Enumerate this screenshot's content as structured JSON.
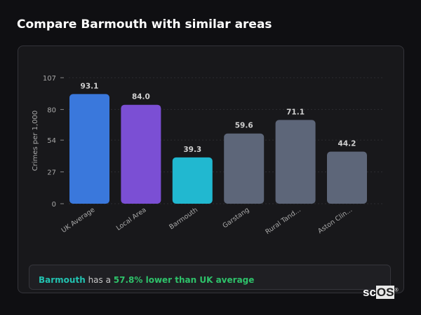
{
  "header": {
    "title": "Compare Barmouth with similar areas"
  },
  "chart_data": {
    "type": "bar",
    "title": "",
    "xlabel": "",
    "ylabel": "Crimes per 1,000",
    "ylim": [
      0,
      107
    ],
    "yticks": [
      0,
      27,
      54,
      80,
      107
    ],
    "grid": true,
    "categories": [
      "UK Average",
      "Local Area",
      "Barmouth",
      "Garstang",
      "Rural Tand...",
      "Aston Clin..."
    ],
    "values": [
      93.1,
      84.0,
      39.3,
      59.6,
      71.1,
      44.2
    ],
    "value_labels": [
      "93.1",
      "84.0",
      "39.3",
      "59.6",
      "71.1",
      "44.2"
    ],
    "colors": [
      "#3a78dc",
      "#7b4fd4",
      "#21b8d0",
      "#5d6679",
      "#5d6679",
      "#5d6679"
    ]
  },
  "summary": {
    "area": "Barmouth",
    "middle": "has a",
    "comparison": "57.8% lower than UK average"
  },
  "logo": {
    "text_sc": "sc",
    "text_os": "OS",
    "mark": "®"
  }
}
